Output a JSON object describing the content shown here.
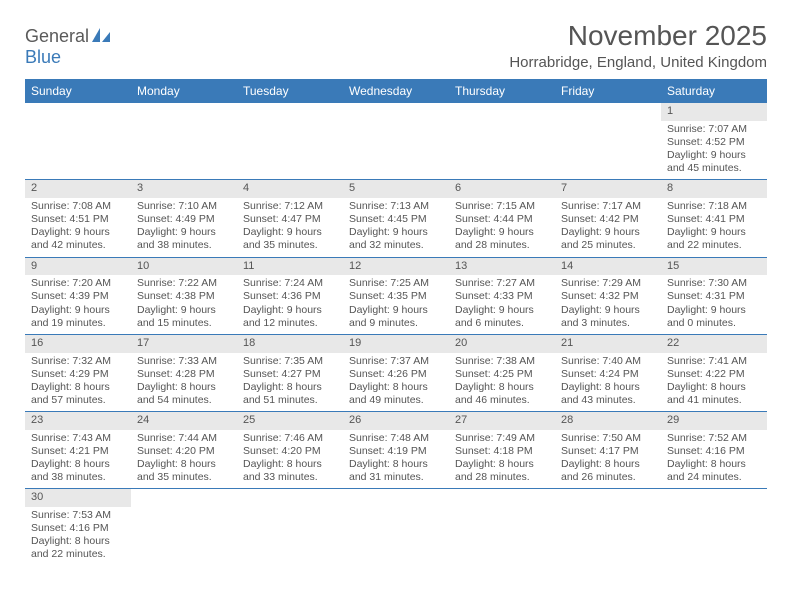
{
  "logo": {
    "part1": "General",
    "part2": "Blue"
  },
  "title": "November 2025",
  "location": "Horrabridge, England, United Kingdom",
  "dayNames": [
    "Sunday",
    "Monday",
    "Tuesday",
    "Wednesday",
    "Thursday",
    "Friday",
    "Saturday"
  ],
  "colors": {
    "headerBg": "#3a7ab8",
    "dayNumBg": "#e8e8e8",
    "text": "#555555"
  },
  "weeks": [
    [
      null,
      null,
      null,
      null,
      null,
      null,
      {
        "d": "1",
        "sr": "7:07 AM",
        "ss": "4:52 PM",
        "dl": "9 hours and 45 minutes."
      }
    ],
    [
      {
        "d": "2",
        "sr": "7:08 AM",
        "ss": "4:51 PM",
        "dl": "9 hours and 42 minutes."
      },
      {
        "d": "3",
        "sr": "7:10 AM",
        "ss": "4:49 PM",
        "dl": "9 hours and 38 minutes."
      },
      {
        "d": "4",
        "sr": "7:12 AM",
        "ss": "4:47 PM",
        "dl": "9 hours and 35 minutes."
      },
      {
        "d": "5",
        "sr": "7:13 AM",
        "ss": "4:45 PM",
        "dl": "9 hours and 32 minutes."
      },
      {
        "d": "6",
        "sr": "7:15 AM",
        "ss": "4:44 PM",
        "dl": "9 hours and 28 minutes."
      },
      {
        "d": "7",
        "sr": "7:17 AM",
        "ss": "4:42 PM",
        "dl": "9 hours and 25 minutes."
      },
      {
        "d": "8",
        "sr": "7:18 AM",
        "ss": "4:41 PM",
        "dl": "9 hours and 22 minutes."
      }
    ],
    [
      {
        "d": "9",
        "sr": "7:20 AM",
        "ss": "4:39 PM",
        "dl": "9 hours and 19 minutes."
      },
      {
        "d": "10",
        "sr": "7:22 AM",
        "ss": "4:38 PM",
        "dl": "9 hours and 15 minutes."
      },
      {
        "d": "11",
        "sr": "7:24 AM",
        "ss": "4:36 PM",
        "dl": "9 hours and 12 minutes."
      },
      {
        "d": "12",
        "sr": "7:25 AM",
        "ss": "4:35 PM",
        "dl": "9 hours and 9 minutes."
      },
      {
        "d": "13",
        "sr": "7:27 AM",
        "ss": "4:33 PM",
        "dl": "9 hours and 6 minutes."
      },
      {
        "d": "14",
        "sr": "7:29 AM",
        "ss": "4:32 PM",
        "dl": "9 hours and 3 minutes."
      },
      {
        "d": "15",
        "sr": "7:30 AM",
        "ss": "4:31 PM",
        "dl": "9 hours and 0 minutes."
      }
    ],
    [
      {
        "d": "16",
        "sr": "7:32 AM",
        "ss": "4:29 PM",
        "dl": "8 hours and 57 minutes."
      },
      {
        "d": "17",
        "sr": "7:33 AM",
        "ss": "4:28 PM",
        "dl": "8 hours and 54 minutes."
      },
      {
        "d": "18",
        "sr": "7:35 AM",
        "ss": "4:27 PM",
        "dl": "8 hours and 51 minutes."
      },
      {
        "d": "19",
        "sr": "7:37 AM",
        "ss": "4:26 PM",
        "dl": "8 hours and 49 minutes."
      },
      {
        "d": "20",
        "sr": "7:38 AM",
        "ss": "4:25 PM",
        "dl": "8 hours and 46 minutes."
      },
      {
        "d": "21",
        "sr": "7:40 AM",
        "ss": "4:24 PM",
        "dl": "8 hours and 43 minutes."
      },
      {
        "d": "22",
        "sr": "7:41 AM",
        "ss": "4:22 PM",
        "dl": "8 hours and 41 minutes."
      }
    ],
    [
      {
        "d": "23",
        "sr": "7:43 AM",
        "ss": "4:21 PM",
        "dl": "8 hours and 38 minutes."
      },
      {
        "d": "24",
        "sr": "7:44 AM",
        "ss": "4:20 PM",
        "dl": "8 hours and 35 minutes."
      },
      {
        "d": "25",
        "sr": "7:46 AM",
        "ss": "4:20 PM",
        "dl": "8 hours and 33 minutes."
      },
      {
        "d": "26",
        "sr": "7:48 AM",
        "ss": "4:19 PM",
        "dl": "8 hours and 31 minutes."
      },
      {
        "d": "27",
        "sr": "7:49 AM",
        "ss": "4:18 PM",
        "dl": "8 hours and 28 minutes."
      },
      {
        "d": "28",
        "sr": "7:50 AM",
        "ss": "4:17 PM",
        "dl": "8 hours and 26 minutes."
      },
      {
        "d": "29",
        "sr": "7:52 AM",
        "ss": "4:16 PM",
        "dl": "8 hours and 24 minutes."
      }
    ],
    [
      {
        "d": "30",
        "sr": "7:53 AM",
        "ss": "4:16 PM",
        "dl": "8 hours and 22 minutes."
      },
      null,
      null,
      null,
      null,
      null,
      null
    ]
  ],
  "labels": {
    "sunrise": "Sunrise:",
    "sunset": "Sunset:",
    "daylight": "Daylight:"
  }
}
